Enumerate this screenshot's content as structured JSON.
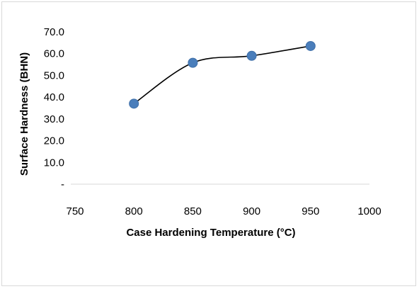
{
  "chart_data": {
    "type": "scatter",
    "title": "",
    "xlabel": "Case Hardening  Temperature (°C)",
    "ylabel": "Surface Hardness (BHN)",
    "xlim": [
      750,
      1000
    ],
    "ylim": [
      0,
      70
    ],
    "x_ticks": [
      "750",
      "800",
      "850",
      "900",
      "950",
      "1000"
    ],
    "y_ticks": [
      "-",
      "10.0",
      "20.0",
      "30.0",
      "40.0",
      "50.0",
      "60.0",
      "70.0"
    ],
    "grid": false,
    "trendline": "smooth",
    "series": [
      {
        "x": [
          800,
          850,
          900,
          950
        ],
        "y": [
          37,
          55.8,
          59,
          63.5
        ],
        "color": "#4a7ebb"
      }
    ]
  }
}
